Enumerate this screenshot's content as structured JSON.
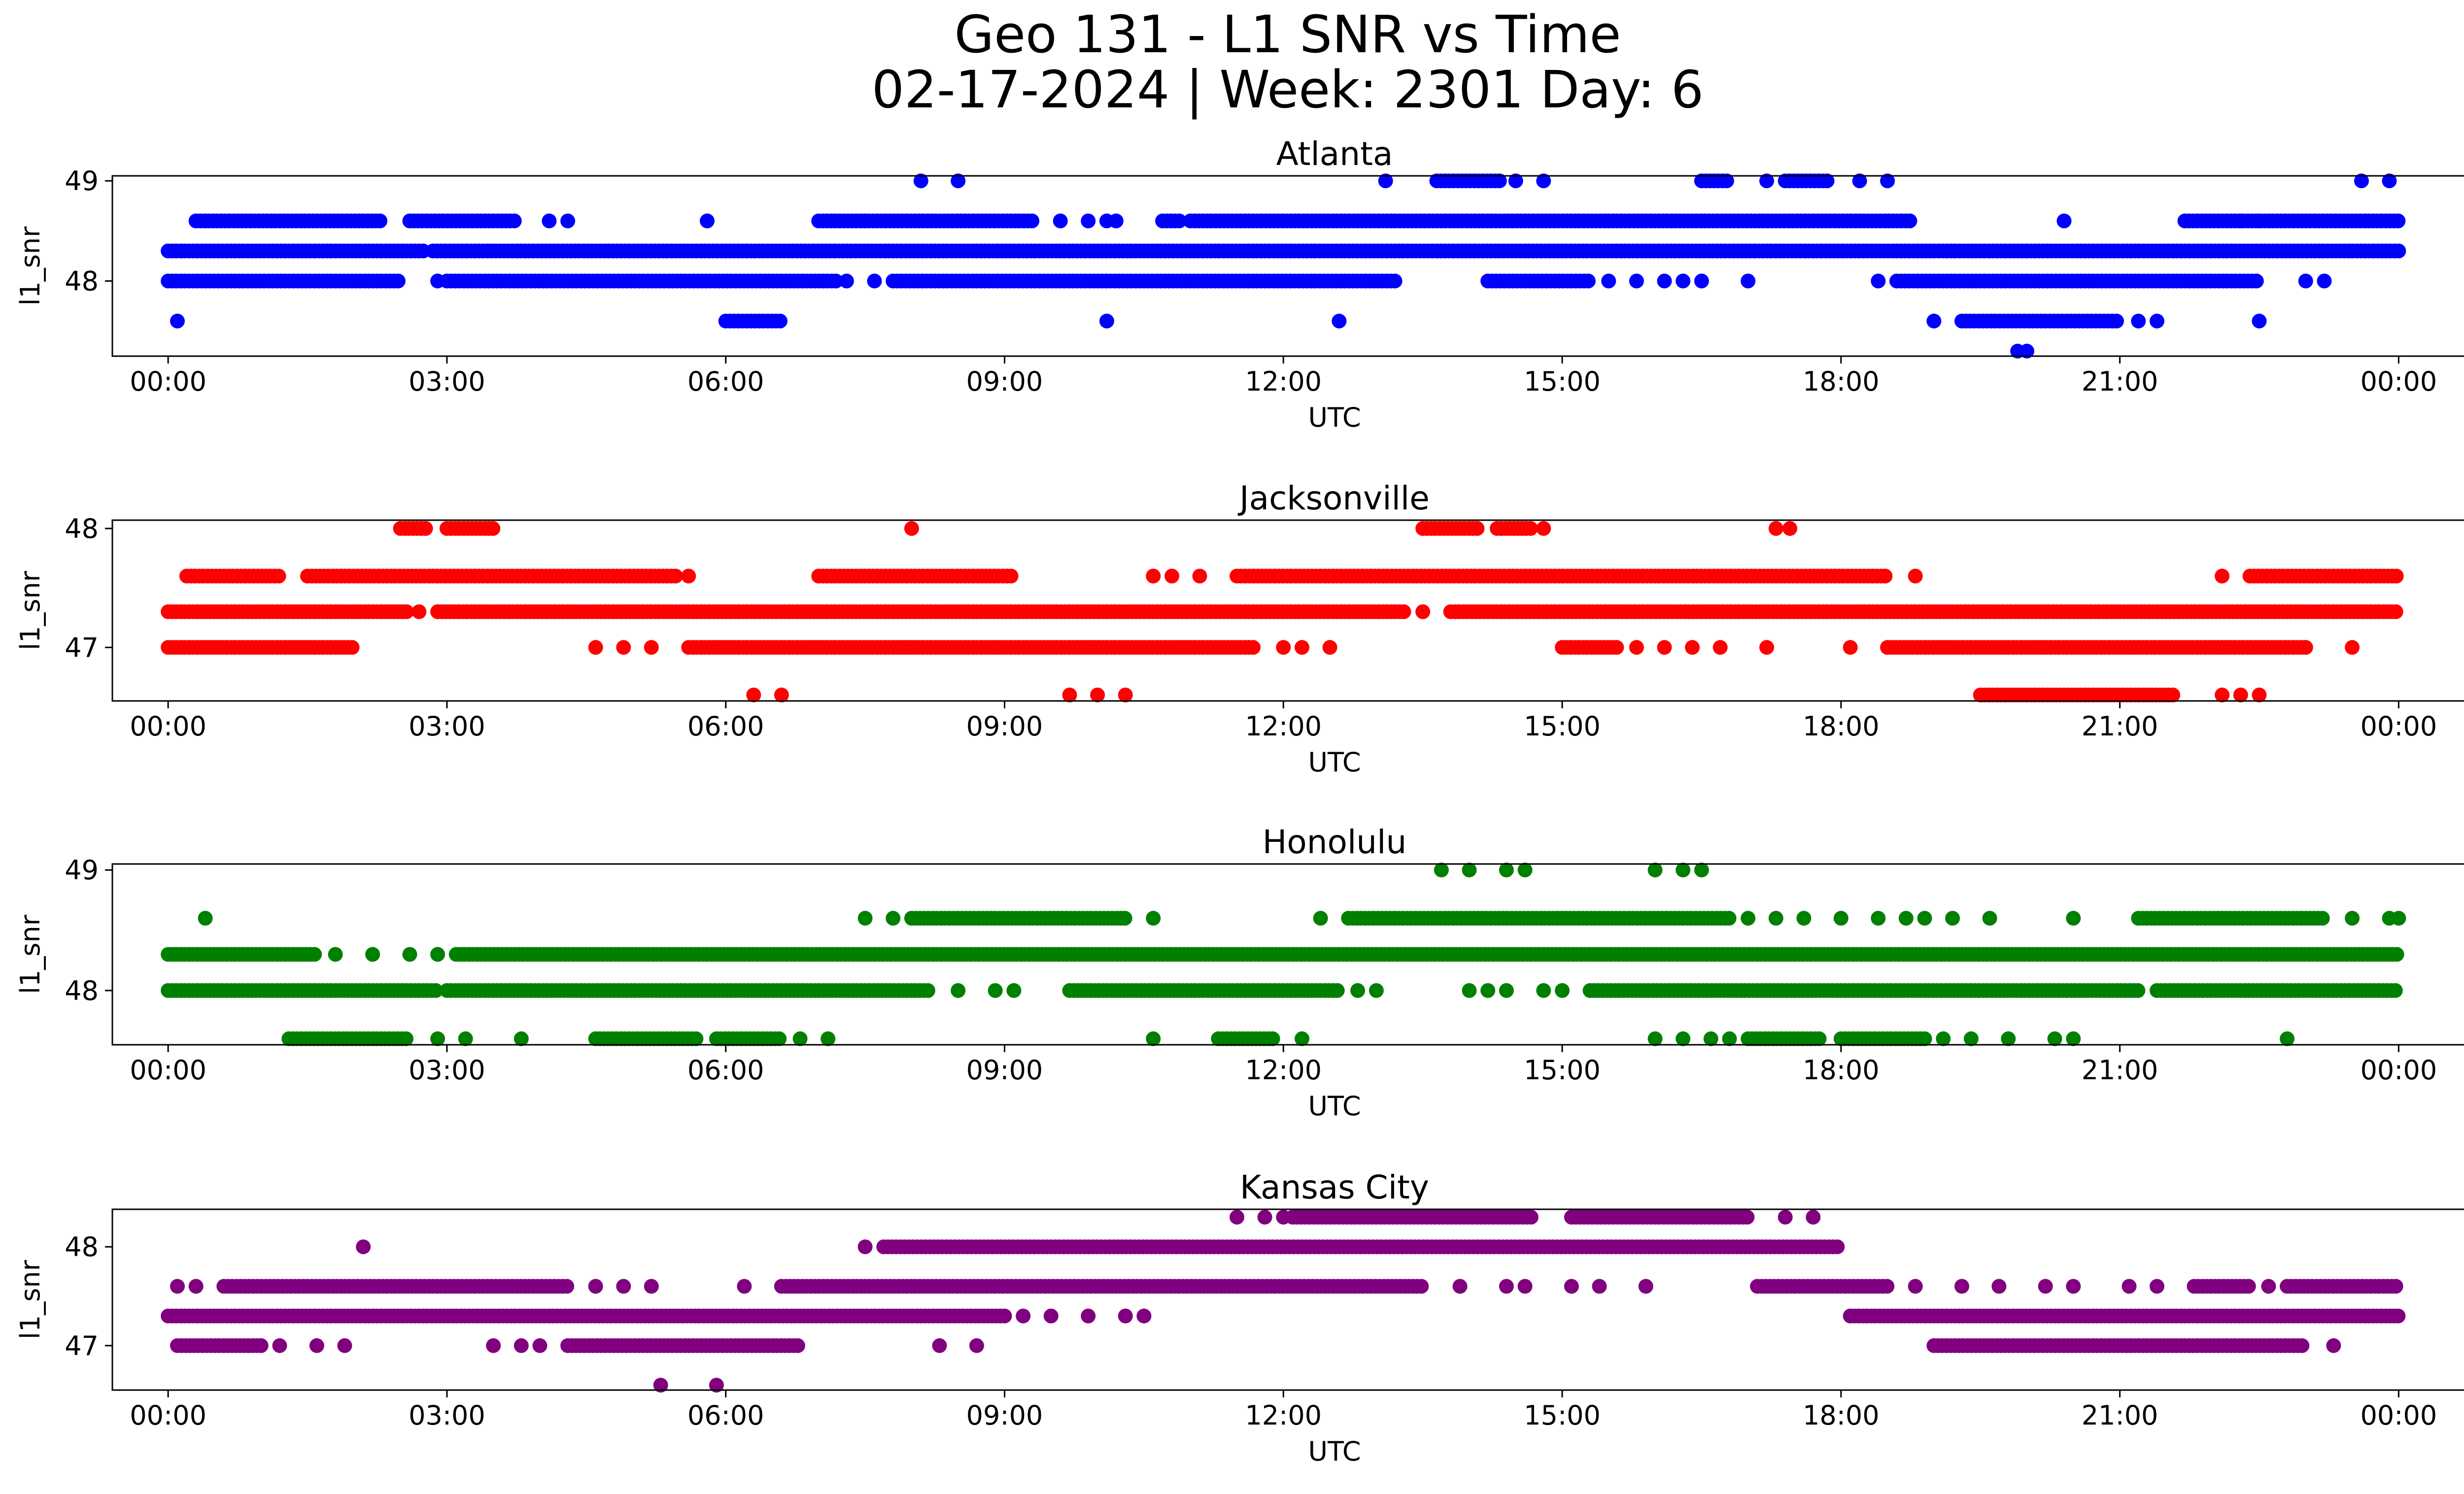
{
  "figure": {
    "title_line1": "Geo 131 - L1 SNR vs Time",
    "title_line2": "02-17-2024 | Week: 2301 Day: 6"
  },
  "chart_data": [
    {
      "type": "scatter",
      "title": "Atlanta",
      "xlabel": "UTC",
      "ylabel": "l1_snr",
      "color": "#0000ff",
      "xlim_hours": [
        -0.6,
        25.7
      ],
      "ylim": [
        47.25,
        49.05
      ],
      "yticks": [
        48,
        49
      ],
      "xticks": [
        "00:00",
        "03:00",
        "06:00",
        "09:00",
        "12:00",
        "15:00",
        "18:00",
        "21:00",
        "00:00"
      ],
      "series": [
        {
          "name": "48.3",
          "y": 48.3,
          "segments": [
            [
              0.0,
              2.75
            ],
            [
              2.85,
              24.0
            ]
          ],
          "points": []
        },
        {
          "name": "48.6",
          "y": 48.6,
          "segments": [
            [
              0.3,
              2.3
            ],
            [
              2.6,
              3.75
            ],
            [
              7.0,
              9.3
            ],
            [
              10.7,
              10.9
            ],
            [
              11.0,
              18.75
            ],
            [
              21.7,
              24.0
            ]
          ],
          "points": [
            0.4,
            4.1,
            4.3,
            5.8,
            7.5,
            9.6,
            9.9,
            10.1,
            10.2,
            20.4,
            22.3,
            22.5
          ]
        },
        {
          "name": "48.0",
          "y": 48.0,
          "segments": [
            [
              0.0,
              2.5
            ],
            [
              3.0,
              7.2
            ],
            [
              7.8,
              13.2
            ],
            [
              14.2,
              15.3
            ],
            [
              18.6,
              22.5
            ]
          ],
          "points": [
            2.9,
            7.3,
            7.6,
            15.5,
            15.8,
            16.1,
            16.3,
            16.5,
            17.0,
            18.4,
            23.0,
            23.2
          ]
        },
        {
          "name": "49.0",
          "y": 49.0,
          "segments": [
            [
              13.65,
              14.35
            ],
            [
              16.5,
              16.8
            ],
            [
              17.4,
              17.85
            ]
          ],
          "points": [
            8.1,
            8.5,
            13.1,
            14.5,
            14.8,
            17.2,
            18.2,
            18.5,
            23.6,
            23.9
          ]
        },
        {
          "name": "47.6",
          "y": 47.6,
          "segments": [
            [
              6.0,
              6.6
            ],
            [
              19.3,
              21.0
            ]
          ],
          "points": [
            0.1,
            10.1,
            12.6,
            19.0,
            21.2,
            21.4,
            22.5
          ]
        },
        {
          "name": "47.3",
          "y": 47.3,
          "segments": [],
          "points": [
            19.9,
            20.0
          ]
        }
      ]
    },
    {
      "type": "scatter",
      "title": "Jacksonville",
      "xlabel": "UTC",
      "ylabel": "l1_snr",
      "color": "#ff0000",
      "xlim_hours": [
        -0.6,
        25.7
      ],
      "ylim": [
        46.55,
        48.07
      ],
      "yticks": [
        47,
        48
      ],
      "xticks": [
        "00:00",
        "03:00",
        "06:00",
        "09:00",
        "12:00",
        "15:00",
        "18:00",
        "21:00",
        "00:00"
      ],
      "series": [
        {
          "name": "47.3",
          "y": 47.3,
          "segments": [
            [
              0.0,
              2.6
            ],
            [
              2.9,
              13.3
            ],
            [
              13.8,
              24.0
            ]
          ],
          "points": [
            2.7,
            13.5
          ]
        },
        {
          "name": "47.6",
          "y": 47.6,
          "segments": [
            [
              0.2,
              1.2
            ],
            [
              1.5,
              5.5
            ],
            [
              7.0,
              9.1
            ],
            [
              11.5,
              18.5
            ],
            [
              22.4,
              24.0
            ]
          ],
          "points": [
            5.6,
            10.6,
            10.8,
            11.1,
            18.8,
            22.1
          ]
        },
        {
          "name": "47.0",
          "y": 47.0,
          "segments": [
            [
              0.0,
              2.0
            ],
            [
              5.6,
              11.7
            ],
            [
              15.0,
              15.6
            ],
            [
              18.5,
              23.0
            ]
          ],
          "points": [
            4.6,
            4.9,
            5.2,
            12.0,
            12.2,
            12.5,
            15.8,
            16.1,
            16.4,
            16.7,
            17.2,
            18.1,
            23.5
          ]
        },
        {
          "name": "48.0",
          "y": 48.0,
          "segments": [
            [
              2.5,
              2.8
            ],
            [
              3.0,
              3.5
            ],
            [
              13.5,
              14.1
            ],
            [
              14.3,
              14.7
            ]
          ],
          "points": [
            8.0,
            14.8,
            17.3,
            17.45
          ]
        },
        {
          "name": "46.6",
          "y": 46.6,
          "segments": [
            [
              19.5,
              21.6
            ]
          ],
          "points": [
            6.3,
            6.6,
            9.7,
            10.0,
            10.3,
            22.1,
            22.3,
            22.5
          ]
        }
      ]
    },
    {
      "type": "scatter",
      "title": "Honolulu",
      "xlabel": "UTC",
      "ylabel": "l1_snr",
      "color": "#008000",
      "xlim_hours": [
        -0.6,
        25.7
      ],
      "ylim": [
        47.55,
        49.05
      ],
      "yticks": [
        48,
        49
      ],
      "xticks": [
        "00:00",
        "03:00",
        "06:00",
        "09:00",
        "12:00",
        "15:00",
        "18:00",
        "21:00",
        "00:00"
      ],
      "series": [
        {
          "name": "48.3",
          "y": 48.3,
          "segments": [
            [
              0.0,
              1.6
            ],
            [
              3.1,
              24.0
            ]
          ],
          "points": [
            1.8,
            2.2,
            2.6,
            2.9
          ]
        },
        {
          "name": "48.0",
          "y": 48.0,
          "segments": [
            [
              0.0,
              2.9
            ],
            [
              3.0,
              8.2
            ],
            [
              9.7,
              12.6
            ],
            [
              15.3,
              21.2
            ],
            [
              21.4,
              24.0
            ]
          ],
          "points": [
            8.5,
            8.9,
            9.1,
            12.8,
            13.0,
            14.0,
            14.2,
            14.4,
            14.8,
            15.0
          ]
        },
        {
          "name": "48.6",
          "y": 48.6,
          "segments": [
            [
              8.0,
              10.3
            ],
            [
              12.7,
              16.8
            ],
            [
              21.2,
              23.2
            ]
          ],
          "points": [
            0.4,
            7.5,
            7.8,
            10.6,
            12.4,
            17.0,
            17.3,
            17.6,
            18.0,
            18.4,
            18.7,
            18.9,
            19.2,
            19.6,
            20.5,
            23.5,
            23.9,
            24.0
          ]
        },
        {
          "name": "49.0",
          "y": 49.0,
          "segments": [],
          "points": [
            13.7,
            14.0,
            14.4,
            14.6,
            16.0,
            16.3,
            16.5
          ]
        },
        {
          "name": "47.6",
          "y": 47.6,
          "segments": [
            [
              1.3,
              2.6
            ],
            [
              4.6,
              5.7
            ],
            [
              5.9,
              6.6
            ],
            [
              11.3,
              11.9
            ],
            [
              17.0,
              17.8
            ],
            [
              18.0,
              18.9
            ]
          ],
          "points": [
            2.9,
            3.2,
            3.8,
            6.8,
            7.1,
            10.6,
            12.2,
            16.0,
            16.3,
            16.6,
            16.8,
            19.1,
            19.4,
            19.8,
            20.3,
            20.5,
            22.8
          ]
        }
      ]
    },
    {
      "type": "scatter",
      "title": "Kansas City",
      "xlabel": "UTC",
      "ylabel": "l1_snr",
      "color": "#800080",
      "xlim_hours": [
        -0.6,
        25.7
      ],
      "ylim": [
        46.55,
        48.38
      ],
      "yticks": [
        47,
        48
      ],
      "xticks": [
        "00:00",
        "03:00",
        "06:00",
        "09:00",
        "12:00",
        "15:00",
        "18:00",
        "21:00",
        "00:00"
      ],
      "series": [
        {
          "name": "47.3",
          "y": 47.3,
          "segments": [
            [
              0.0,
              9.0
            ],
            [
              18.1,
              24.0
            ]
          ],
          "points": [
            9.2,
            9.5,
            9.9,
            10.3,
            10.5
          ]
        },
        {
          "name": "47.6",
          "y": 47.6,
          "segments": [
            [
              0.6,
              4.3
            ],
            [
              6.6,
              13.5
            ],
            [
              17.1,
              18.5
            ],
            [
              21.8,
              22.4
            ],
            [
              22.8,
              24.0
            ]
          ],
          "points": [
            0.1,
            0.3,
            4.6,
            4.9,
            5.2,
            6.2,
            13.9,
            14.4,
            14.6,
            15.1,
            15.4,
            15.9,
            18.8,
            19.3,
            19.7,
            20.2,
            20.5,
            21.1,
            21.4,
            22.6
          ]
        },
        {
          "name": "47.0",
          "y": 47.0,
          "segments": [
            [
              0.1,
              1.0
            ],
            [
              4.3,
              6.8
            ],
            [
              19.0,
              23.0
            ]
          ],
          "points": [
            1.2,
            1.6,
            1.9,
            3.5,
            3.8,
            4.0,
            8.3,
            8.7,
            23.3
          ]
        },
        {
          "name": "48.0",
          "y": 48.0,
          "segments": [
            [
              7.7,
              18.0
            ]
          ],
          "points": [
            2.1,
            7.5
          ]
        },
        {
          "name": "48.3",
          "y": 48.3,
          "segments": [
            [
              12.1,
              14.7
            ],
            [
              15.1,
              17.0
            ]
          ],
          "points": [
            11.5,
            11.8,
            12.0,
            17.4,
            17.7
          ]
        },
        {
          "name": "46.6",
          "y": 46.6,
          "segments": [],
          "points": [
            5.3,
            5.9
          ]
        }
      ]
    }
  ]
}
